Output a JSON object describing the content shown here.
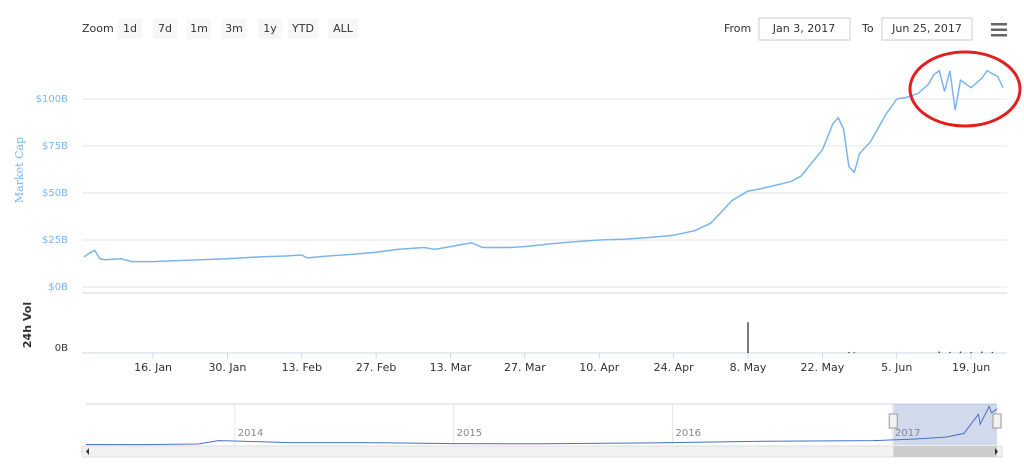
{
  "chart_data": {
    "type": "line",
    "toolbar": {
      "zoom_label": "Zoom",
      "buttons": [
        "1d",
        "7d",
        "1m",
        "3m",
        "1y",
        "YTD",
        "ALL"
      ],
      "from_label": "From",
      "from": "Jan 3, 2017",
      "to_label": "To",
      "to": "Jun 25, 2017"
    },
    "y_axis_title": "Market Cap",
    "color": "#7cb5ec",
    "xlim": [
      "2017-01-03",
      "2017-06-25"
    ],
    "xticks": [
      {
        "value": "2017-01-16",
        "label": "16. Jan"
      },
      {
        "value": "2017-01-30",
        "label": "30. Jan"
      },
      {
        "value": "2017-02-13",
        "label": "13. Feb"
      },
      {
        "value": "2017-02-27",
        "label": "27. Feb"
      },
      {
        "value": "2017-03-13",
        "label": "13. Mar"
      },
      {
        "value": "2017-03-27",
        "label": "27. Mar"
      },
      {
        "value": "2017-04-10",
        "label": "10. Apr"
      },
      {
        "value": "2017-04-24",
        "label": "24. Apr"
      },
      {
        "value": "2017-05-08",
        "label": "8. May"
      },
      {
        "value": "2017-05-22",
        "label": "22. May"
      },
      {
        "value": "2017-06-05",
        "label": "5. Jun"
      },
      {
        "value": "2017-06-19",
        "label": "19. Jun"
      }
    ],
    "ylim": [
      0,
      125
    ],
    "yticks": [
      {
        "value": 0,
        "label": "$0B"
      },
      {
        "value": 25,
        "label": "$25B"
      },
      {
        "value": 50,
        "label": "$50B"
      },
      {
        "value": 75,
        "label": "$75B"
      },
      {
        "value": 100,
        "label": "$100B"
      }
    ],
    "grid": true,
    "x": [
      "2017-01-03",
      "2017-01-04",
      "2017-01-05",
      "2017-01-06",
      "2017-01-07",
      "2017-01-10",
      "2017-01-12",
      "2017-01-16",
      "2017-01-20",
      "2017-01-25",
      "2017-01-30",
      "2017-02-05",
      "2017-02-10",
      "2017-02-13",
      "2017-02-14",
      "2017-02-18",
      "2017-02-23",
      "2017-02-27",
      "2017-03-03",
      "2017-03-08",
      "2017-03-10",
      "2017-03-14",
      "2017-03-17",
      "2017-03-19",
      "2017-03-24",
      "2017-03-27",
      "2017-04-01",
      "2017-04-05",
      "2017-04-10",
      "2017-04-15",
      "2017-04-20",
      "2017-04-24",
      "2017-04-28",
      "2017-05-01",
      "2017-05-03",
      "2017-05-05",
      "2017-05-08",
      "2017-05-10",
      "2017-05-13",
      "2017-05-16",
      "2017-05-18",
      "2017-05-20",
      "2017-05-22",
      "2017-05-23",
      "2017-05-24",
      "2017-05-25",
      "2017-05-26",
      "2017-05-27",
      "2017-05-28",
      "2017-05-29",
      "2017-05-31",
      "2017-06-01",
      "2017-06-03",
      "2017-06-05",
      "2017-06-07",
      "2017-06-09",
      "2017-06-11",
      "2017-06-12",
      "2017-06-13",
      "2017-06-14",
      "2017-06-15",
      "2017-06-16",
      "2017-06-17",
      "2017-06-19",
      "2017-06-21",
      "2017-06-22",
      "2017-06-24",
      "2017-06-25"
    ],
    "values": [
      16,
      18,
      19.5,
      15,
      14.5,
      15,
      13.5,
      13.5,
      14,
      14.5,
      15,
      16,
      16.5,
      17,
      15.5,
      16.5,
      17.5,
      18.5,
      20,
      21,
      20,
      22,
      23.5,
      21,
      21,
      21.5,
      23,
      24,
      25,
      25.5,
      26.5,
      27.5,
      30,
      34,
      40,
      46,
      51,
      52,
      54,
      56,
      59,
      66,
      73,
      80,
      87,
      90,
      84,
      64,
      61,
      71,
      77,
      82,
      92,
      100,
      101,
      103,
      108,
      113,
      115,
      104,
      115,
      94,
      110,
      106,
      111,
      115,
      112,
      106
    ],
    "volume": {
      "axis_title": "24h Vol",
      "ylim": [
        0,
        20
      ],
      "yticks": [
        {
          "value": 0,
          "label": "0B"
        }
      ],
      "x": [
        "2017-05-08",
        "2017-05-27",
        "2017-05-28",
        "2017-06-13",
        "2017-06-15",
        "2017-06-17",
        "2017-06-19",
        "2017-06-21",
        "2017-06-23"
      ],
      "values": [
        11,
        0.4,
        0.3,
        0.5,
        0.4,
        0.5,
        0.4,
        0.5,
        0.4
      ]
    },
    "navigator": {
      "xlim": [
        "2013-04-28",
        "2017-06-25"
      ],
      "ylim": [
        0,
        120
      ],
      "xticks": [
        {
          "value": "2014-01-01",
          "label": "2014"
        },
        {
          "value": "2015-01-01",
          "label": "2015"
        },
        {
          "value": "2016-01-01",
          "label": "2016"
        },
        {
          "value": "2017-01-01",
          "label": "2017"
        }
      ],
      "x": [
        "2013-04-28",
        "2013-08-01",
        "2013-11-01",
        "2013-12-05",
        "2014-01-15",
        "2014-04-01",
        "2014-08-01",
        "2015-01-01",
        "2015-06-01",
        "2015-12-01",
        "2016-06-01",
        "2016-12-01",
        "2017-02-01",
        "2017-04-01",
        "2017-05-01",
        "2017-05-25",
        "2017-05-28",
        "2017-06-12",
        "2017-06-16",
        "2017-06-25"
      ],
      "values": [
        1.5,
        1.3,
        3,
        13,
        11,
        7,
        7,
        4,
        3.5,
        6,
        11,
        13,
        17,
        23,
        34,
        90,
        61,
        113,
        94,
        106
      ]
    }
  }
}
